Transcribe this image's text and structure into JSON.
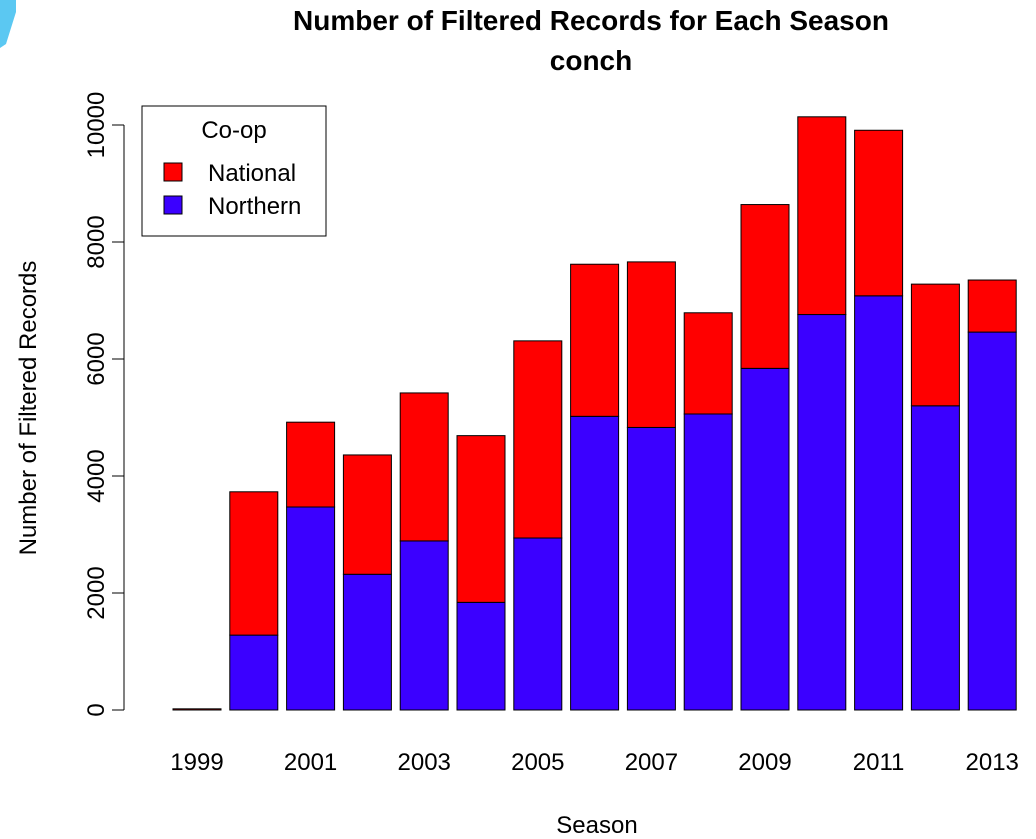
{
  "chart_data": {
    "type": "bar",
    "stacked": true,
    "title": "Number of Filtered Records for Each Season",
    "subtitle": "conch",
    "xlabel": "Season",
    "ylabel": "Number of Filtered Records",
    "ylim": [
      0,
      10000
    ],
    "yticks": [
      0,
      2000,
      4000,
      6000,
      8000,
      10000
    ],
    "categories": [
      "1999",
      "2000",
      "2001",
      "2002",
      "2003",
      "2004",
      "2005",
      "2006",
      "2007",
      "2008",
      "2009",
      "2010",
      "2011",
      "2012",
      "2013"
    ],
    "xtick_labels": [
      "1999",
      "2001",
      "2003",
      "2005",
      "2007",
      "2009",
      "2011",
      "2013"
    ],
    "series": [
      {
        "name": "Northern",
        "color": "#3B00FF",
        "values": [
          0,
          1280,
          3470,
          2320,
          2890,
          1840,
          2940,
          5020,
          4830,
          5060,
          5840,
          6760,
          7080,
          5200,
          6460
        ]
      },
      {
        "name": "National",
        "color": "#FF0000",
        "values": [
          20,
          2450,
          1450,
          2040,
          2530,
          2850,
          3370,
          2600,
          2830,
          1730,
          2800,
          3380,
          2830,
          2080,
          890
        ]
      }
    ],
    "legend": {
      "title": "Co-op",
      "position": "top-left",
      "entries": [
        {
          "label": "National",
          "color": "#FF0000"
        },
        {
          "label": "Northern",
          "color": "#3B00FF"
        }
      ]
    }
  }
}
